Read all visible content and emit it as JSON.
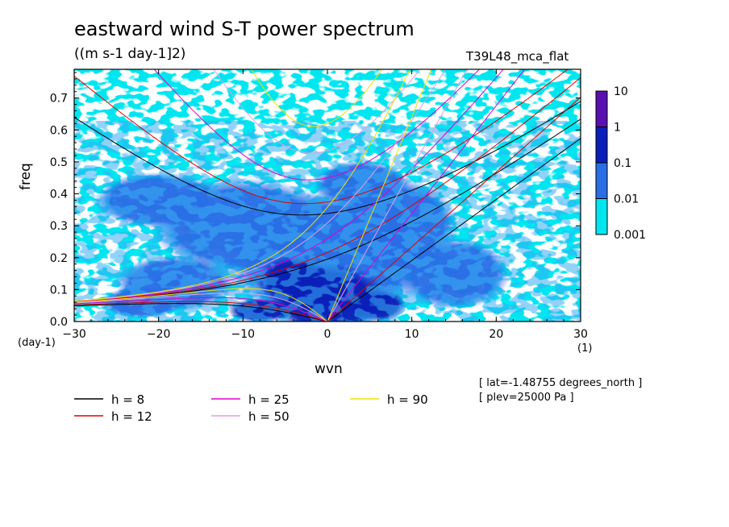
{
  "chart_data": {
    "type": "heatmap",
    "title": "eastward wind S-T power spectrum",
    "subtitle": "((m s-1 day-1]2)",
    "run_label": "T39L48_mca_flat",
    "xlabel": "wvn",
    "ylabel": "freq",
    "xunit": "(1)",
    "yunit": "(day-1)",
    "xlim": [
      -30,
      30
    ],
    "ylim": [
      0,
      0.79
    ],
    "xticks": [
      "−30",
      "−20",
      "−10",
      "0",
      "10",
      "20",
      "30"
    ],
    "xtick_values": [
      -30,
      -20,
      -10,
      0,
      10,
      20,
      30
    ],
    "yticks": [
      "0.0",
      "0.1",
      "0.2",
      "0.3",
      "0.4",
      "0.5",
      "0.6",
      "0.7"
    ],
    "ytick_values": [
      0,
      0.1,
      0.2,
      0.3,
      0.4,
      0.5,
      0.6,
      0.7
    ],
    "colorbar": {
      "labels": [
        "10",
        "1",
        "0.1",
        "0.01",
        "0.001"
      ],
      "levels": [
        10,
        1,
        0.1,
        0.01,
        0.001
      ],
      "colors": [
        "#5a10b0",
        "#0a1fb8",
        "#2a6ee6",
        "#00e6f0"
      ]
    },
    "background_colors": {
      "level_0001": "#00e6f0",
      "level_001": "#2a6ee6",
      "level_01": "#0a1fb8",
      "below": "#ffffff"
    },
    "legend": [
      {
        "label": "h =  8",
        "color": "#000000"
      },
      {
        "label": "h = 12",
        "color": "#e00000"
      },
      {
        "label": "h = 25",
        "color": "#e000c8"
      },
      {
        "label": "h = 50",
        "color": "#e0a0e0"
      },
      {
        "label": "h = 90",
        "color": "#f0e000"
      }
    ],
    "dispersion_curves": {
      "equivalent_depths_m": [
        8,
        12,
        25,
        50,
        90
      ],
      "kelvin_wave_freq_at_k10": [
        0.17,
        0.21,
        0.31,
        0.43,
        0.58
      ],
      "inertia_gravity_min_freq": [
        0.33,
        0.37,
        0.44,
        0.5,
        0.61
      ],
      "rossby_max_freq": [
        0.05,
        0.06,
        0.075,
        0.09,
        0.1
      ]
    },
    "annotations": [
      "[ lat=-1.48755 degrees_north ]",
      "[ plev=25000 Pa ]"
    ]
  }
}
